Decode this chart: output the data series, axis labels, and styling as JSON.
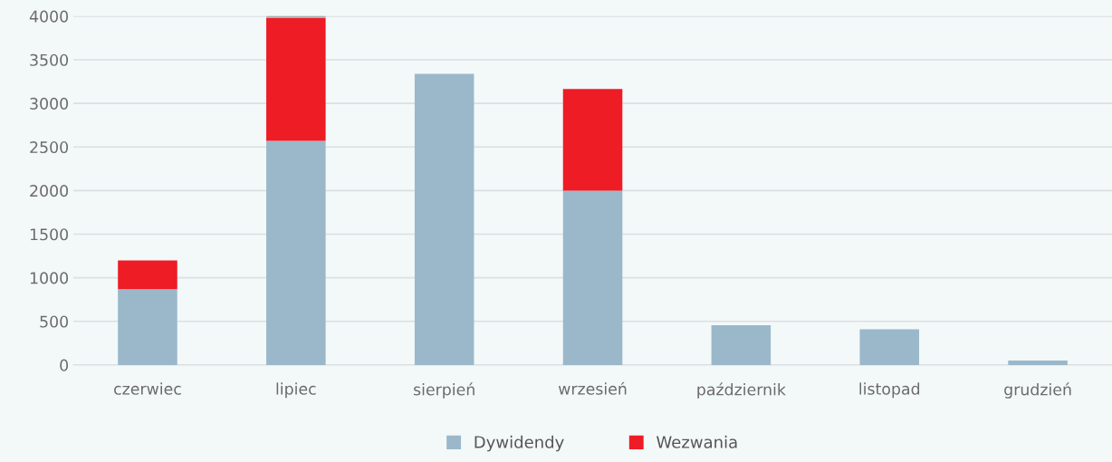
{
  "chart_data": {
    "type": "bar",
    "stacked": true,
    "categories": [
      "czerwiec",
      "lipiec",
      "sierpień",
      "wrzesień",
      "październik",
      "listopad",
      "grudzień"
    ],
    "series": [
      {
        "name": "Dywidendy",
        "color": "#9bb8ca",
        "values": [
          870,
          2570,
          3340,
          2000,
          455,
          410,
          50
        ]
      },
      {
        "name": "Wezwania",
        "color": "#ee1c25",
        "values": [
          330,
          1410,
          null,
          1165,
          null,
          null,
          null
        ]
      },
      {
        "color": "#a8aeb0",
        "values": [
          null,
          30,
          null,
          null,
          null,
          null,
          null
        ]
      }
    ],
    "ylim": [
      0,
      4000
    ],
    "yticks": [
      0,
      500,
      1000,
      1500,
      2000,
      2500,
      3000,
      3500,
      4000
    ],
    "grid": "y",
    "legend": "bottom"
  }
}
